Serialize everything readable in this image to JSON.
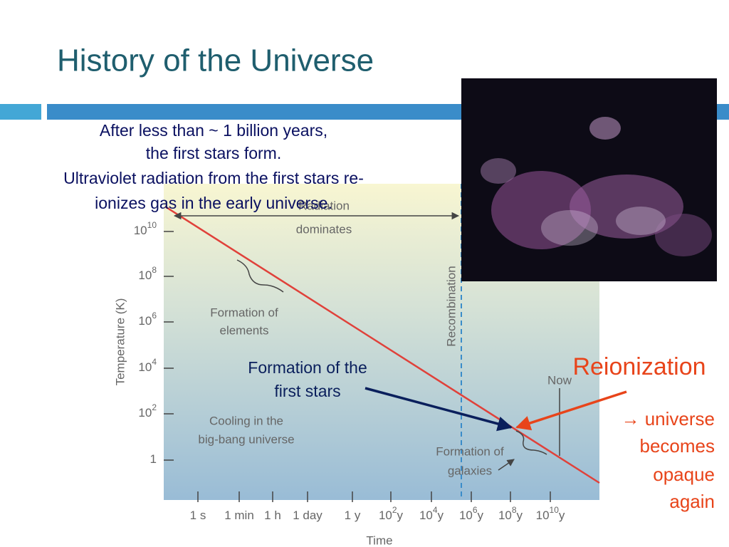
{
  "slide": {
    "title": "History of the Universe",
    "intro": [
      "After less than ~ 1 billion years,",
      "the first stars form.",
      "Ultraviolet radiation from the first stars re-",
      "ionizes gas in the early universe."
    ],
    "figure": {
      "y_axis_label": "Temperature (K)",
      "x_axis_label": "Time",
      "y_ticks": [
        {
          "base": "10",
          "exp": "10"
        },
        {
          "base": "10",
          "exp": "8"
        },
        {
          "base": "10",
          "exp": "6"
        },
        {
          "base": "10",
          "exp": "4"
        },
        {
          "base": "10",
          "exp": "2"
        },
        {
          "base": "1"
        }
      ],
      "x_ticks": [
        {
          "base": "1 s"
        },
        {
          "base": "1 min"
        },
        {
          "base": "1 h"
        },
        {
          "base": "1 day"
        },
        {
          "base": "1 y"
        },
        {
          "base": "10",
          "exp": "2",
          "unit": "y"
        },
        {
          "base": "10",
          "exp": "4",
          "unit": "y"
        },
        {
          "base": "10",
          "exp": "6",
          "unit": "y"
        },
        {
          "base": "10",
          "exp": "8",
          "unit": "y"
        },
        {
          "base": "10",
          "exp": "10",
          "unit": "y"
        }
      ],
      "radiation": [
        "Radiation",
        "dominates"
      ],
      "elements": [
        "Formation of",
        "elements"
      ],
      "cooling": [
        "Cooling in the",
        "big-bang universe"
      ],
      "galaxies": [
        "Formation of",
        "galaxies"
      ],
      "recombination": "Recombination",
      "now": "Now"
    },
    "first_stars": [
      "Formation of the",
      "first stars"
    ],
    "reionization": "Reionization",
    "consequence": [
      "→ universe",
      "becomes",
      "opaque",
      "again"
    ]
  }
}
